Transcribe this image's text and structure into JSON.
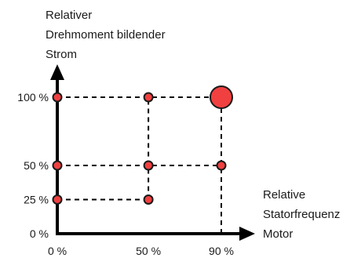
{
  "chart_data": {
    "type": "scatter",
    "ylabel": [
      "Relativer",
      "Drehmoment bildender",
      "Strom"
    ],
    "xlabel": [
      "Relative",
      "Statorfrequenz",
      "Motor"
    ],
    "x_ticks": [
      {
        "value": 0,
        "label": "0 %"
      },
      {
        "value": 50,
        "label": "50 %"
      },
      {
        "value": 90,
        "label": "90 %"
      }
    ],
    "y_ticks": [
      {
        "value": 0,
        "label": "0 %"
      },
      {
        "value": 25,
        "label": "25 %"
      },
      {
        "value": 50,
        "label": "50 %"
      },
      {
        "value": 100,
        "label": "100 %"
      }
    ],
    "points": [
      {
        "x": 0,
        "y": 25
      },
      {
        "x": 50,
        "y": 25
      },
      {
        "x": 0,
        "y": 50
      },
      {
        "x": 50,
        "y": 50
      },
      {
        "x": 90,
        "y": 50
      },
      {
        "x": 0,
        "y": 100
      },
      {
        "x": 50,
        "y": 100
      },
      {
        "x": 90,
        "y": 100,
        "highlight": true
      }
    ],
    "guides": [
      {
        "from": [
          0,
          25
        ],
        "to": [
          50,
          25
        ]
      },
      {
        "from": [
          50,
          25
        ],
        "to": [
          50,
          100
        ]
      },
      {
        "from": [
          0,
          50
        ],
        "to": [
          90,
          50
        ]
      },
      {
        "from": [
          0,
          100
        ],
        "to": [
          90,
          100
        ]
      },
      {
        "from": [
          90,
          0
        ],
        "to": [
          90,
          100
        ]
      }
    ],
    "xlim": [
      0,
      90
    ],
    "ylim": [
      0,
      100
    ],
    "grid": false,
    "marker_color": "#f04040",
    "marker_stroke": "#1a1a1a"
  }
}
